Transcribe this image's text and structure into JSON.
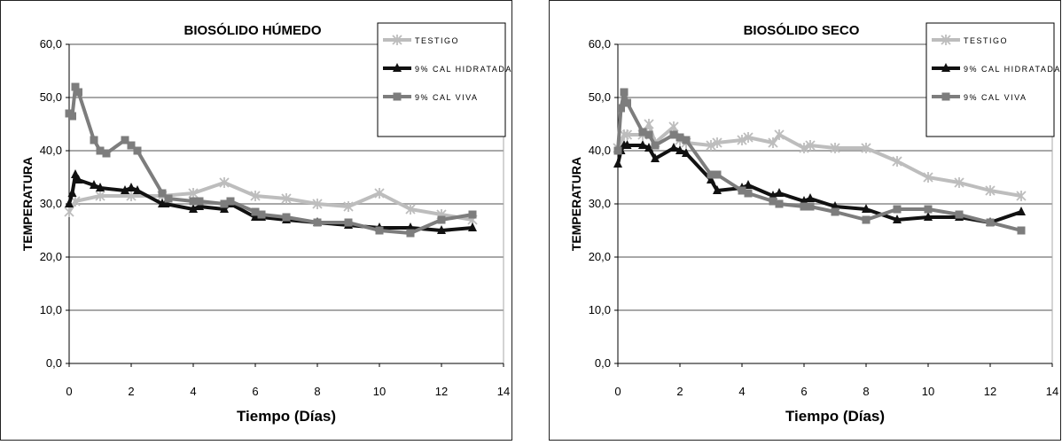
{
  "chart_data": [
    {
      "type": "line",
      "title": "BIOSÓLIDO HÚMEDO",
      "xlabel": "Tiempo (Días)",
      "ylabel": "TEMPERATURA",
      "xlim": [
        0,
        14
      ],
      "ylim": [
        0,
        60
      ],
      "x_ticks": [
        "0",
        "2",
        "4",
        "6",
        "8",
        "10",
        "12",
        "14"
      ],
      "y_ticks": [
        "0,0",
        "10,0",
        "20,0",
        "30,0",
        "40,0",
        "50,0",
        "60,0"
      ],
      "grid": "horizontal",
      "legend": "top-right",
      "series": [
        {
          "name": "TESTIGO",
          "color": "#bdbdbd",
          "marker": "x",
          "x": [
            0,
            0.2,
            1,
            2,
            3,
            4,
            5,
            6,
            7,
            8,
            9,
            10,
            11,
            12,
            13
          ],
          "y": [
            28.5,
            30.5,
            31.5,
            31.5,
            31.5,
            32,
            34,
            31.5,
            31,
            30,
            29.5,
            32,
            29,
            28,
            27
          ]
        },
        {
          "name": "9% CAL HIDRATADA",
          "color": "#111111",
          "marker": "triangle",
          "x": [
            0,
            0.1,
            0.2,
            0.3,
            0.8,
            1,
            1.8,
            2,
            2.2,
            3,
            3.1,
            4,
            4.2,
            5,
            5.2,
            6,
            6.2,
            7,
            8,
            9,
            10,
            11,
            12,
            13
          ],
          "y": [
            30,
            32,
            35.5,
            34.5,
            33.5,
            33,
            32.5,
            33,
            32.5,
            30,
            30,
            29,
            29.5,
            29,
            30,
            27.5,
            27.5,
            27,
            26.5,
            26,
            25.5,
            25.5,
            25,
            25.5
          ]
        },
        {
          "name": "9% CAL VIVA",
          "color": "#7d7d7d",
          "marker": "square",
          "x": [
            0,
            0.1,
            0.2,
            0.3,
            0.8,
            1,
            1.2,
            1.8,
            2,
            2.2,
            3,
            3.2,
            4,
            4.2,
            5,
            5.2,
            6,
            6.2,
            7,
            8,
            9,
            10,
            11,
            12,
            13
          ],
          "y": [
            47,
            46.5,
            52,
            51,
            42,
            40,
            39.5,
            42,
            41,
            40,
            32,
            31,
            30.5,
            30.5,
            30,
            30.5,
            28.5,
            28,
            27.5,
            26.5,
            26.5,
            25,
            24.5,
            27,
            28
          ]
        }
      ]
    },
    {
      "type": "line",
      "title": "BIOSÓLIDO SECO",
      "xlabel": "Tiempo (Días)",
      "ylabel": "TEMPERATURA",
      "xlim": [
        0,
        14
      ],
      "ylim": [
        0,
        60
      ],
      "x_ticks": [
        "0",
        "2",
        "4",
        "6",
        "8",
        "10",
        "12",
        "14"
      ],
      "y_ticks": [
        "0,0",
        "10,0",
        "20,0",
        "30,0",
        "40,0",
        "50,0",
        "60,0"
      ],
      "grid": "horizontal",
      "legend": "top-right",
      "series": [
        {
          "name": "TESTIGO",
          "color": "#bdbdbd",
          "marker": "x",
          "x": [
            0,
            0.2,
            0.3,
            0.8,
            1,
            1.2,
            1.8,
            2,
            2.2,
            3,
            3.2,
            4,
            4.2,
            5,
            5.2,
            6,
            6.2,
            7,
            8,
            9,
            10,
            11,
            12,
            13
          ],
          "y": [
            40.5,
            43,
            43,
            43,
            45,
            41.5,
            44.5,
            42,
            41.5,
            41,
            41.5,
            42,
            42.5,
            41.5,
            43,
            40.5,
            41,
            40.5,
            40.5,
            38,
            35,
            34,
            32.5,
            31.5
          ]
        },
        {
          "name": "9% CAL HIDRATADA",
          "color": "#111111",
          "marker": "triangle",
          "x": [
            0,
            0.1,
            0.2,
            0.3,
            0.8,
            1,
            1.2,
            1.8,
            2,
            2.2,
            3,
            3.2,
            4,
            4.2,
            5,
            5.2,
            6,
            6.2,
            7,
            8,
            9,
            10,
            11,
            12,
            13
          ],
          "y": [
            37.5,
            40,
            41,
            41,
            41,
            40.5,
            38.5,
            40.5,
            40,
            39.5,
            34.5,
            32.5,
            33,
            33.5,
            31.5,
            32,
            30.5,
            31,
            29.5,
            29,
            27,
            27.5,
            27.5,
            26.5,
            28.5
          ]
        },
        {
          "name": "9% CAL VIVA",
          "color": "#7d7d7d",
          "marker": "square",
          "x": [
            0,
            0.1,
            0.2,
            0.3,
            0.8,
            1,
            1.2,
            1.8,
            2,
            2.2,
            3,
            3.2,
            4,
            4.2,
            5,
            5.2,
            6,
            6.2,
            7,
            8,
            9,
            10,
            11,
            12,
            13
          ],
          "y": [
            40,
            48,
            51,
            49,
            43.5,
            43,
            41,
            43,
            42.5,
            42,
            35.5,
            35.5,
            32.5,
            32,
            30.5,
            30,
            29.5,
            29.5,
            28.5,
            27,
            29,
            29,
            28,
            26.5,
            25
          ]
        }
      ]
    }
  ]
}
